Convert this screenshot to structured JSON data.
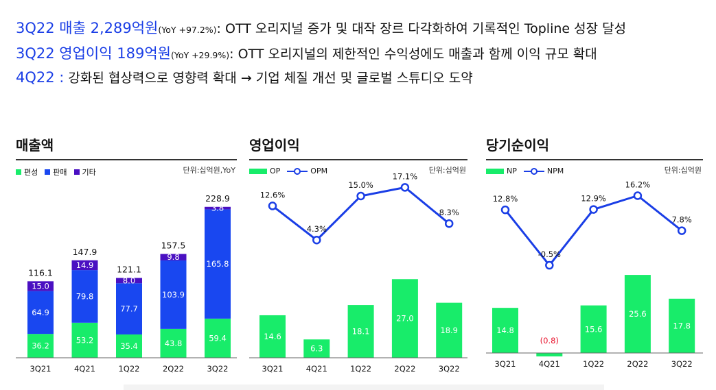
{
  "headlines": [
    {
      "big": "3Q22 매출 2,289억원",
      "yoy": "(YoY +97.2%)",
      "colon": ":",
      "text": " OTT 오리지널 증가 및 대작 장르 다각화하여 기록적인 Topline 성장 달성"
    },
    {
      "big": "3Q22 영업이익 189억원",
      "yoy": "(YoY +29.9%)",
      "colon": ":",
      "text": " OTT 오리지널의 제한적인 수익성에도 매출과 함께 이익 규모 확대"
    },
    {
      "big": "4Q22",
      "yoy": "",
      "colon": " :",
      "text": " 강화된 협상력으로 영향력 확대 → 기업 체질 개선 및 글로벌 스튜디오 도약"
    }
  ],
  "colors": {
    "green": "#18ec6a",
    "blue": "#1947f0",
    "purple": "#4a10c2",
    "line": "#1a3ee6",
    "neg": "#e8102a"
  },
  "chart_data": [
    {
      "type": "bar",
      "stacked": true,
      "title": "매출액",
      "unit": "단위:십억원,YoY",
      "categories": [
        "3Q21",
        "4Q21",
        "1Q22",
        "2Q22",
        "3Q22"
      ],
      "series": [
        {
          "name": "편성",
          "values": [
            36.2,
            53.2,
            35.4,
            43.8,
            59.4
          ]
        },
        {
          "name": "판매",
          "values": [
            64.9,
            79.8,
            77.7,
            103.9,
            165.8
          ]
        },
        {
          "name": "기타",
          "values": [
            15.0,
            14.9,
            8.0,
            9.8,
            3.8
          ]
        }
      ],
      "series_labels": [
        [
          "36.2",
          "53.2",
          "35.4",
          "43.8",
          "59.4"
        ],
        [
          "64.9",
          "79.8",
          "77.7",
          "103.9",
          "165.8"
        ],
        [
          "15.0",
          "14.9",
          "8.0",
          "9.8",
          "3.8"
        ]
      ],
      "totals": [
        116.1,
        147.9,
        121.1,
        157.5,
        228.9
      ],
      "total_labels": [
        "116.1",
        "147.9",
        "121.1",
        "157.5",
        "228.9"
      ],
      "ylim": [
        0,
        235
      ],
      "legend": "top-left",
      "grid": false
    },
    {
      "type": "bar+line",
      "title": "영업이익",
      "unit": "단위:십억원",
      "categories": [
        "3Q21",
        "4Q21",
        "1Q22",
        "2Q22",
        "3Q22"
      ],
      "bars": {
        "name": "OP",
        "values": [
          14.6,
          6.3,
          18.1,
          27.0,
          18.9
        ],
        "labels": [
          "14.6",
          "6.3",
          "18.1",
          "27.0",
          "18.9"
        ]
      },
      "line": {
        "name": "OPM",
        "values": [
          12.6,
          4.3,
          15.0,
          17.1,
          8.3
        ],
        "labels": [
          "12.6%",
          "4.3%",
          "15.0%",
          "17.1%",
          "8.3%"
        ]
      },
      "ylim": [
        0,
        27.6
      ],
      "legend": "top-left",
      "grid": false
    },
    {
      "type": "bar+line",
      "title": "당기순이익",
      "unit": "단위:십억원",
      "categories": [
        "3Q21",
        "4Q21",
        "1Q22",
        "2Q22",
        "3Q22"
      ],
      "bars": {
        "name": "NP",
        "values": [
          14.8,
          -0.8,
          15.6,
          25.6,
          17.8
        ],
        "labels": [
          "14.8",
          "(0.8)",
          "15.6",
          "25.6",
          "17.8"
        ]
      },
      "line": {
        "name": "NPM",
        "values": [
          12.8,
          -0.5,
          12.9,
          16.2,
          7.8
        ],
        "labels": [
          "12.8%",
          "-0.5%",
          "12.9%",
          "16.2%",
          "7.8%"
        ]
      },
      "ylim": [
        -0.8,
        26.0
      ],
      "legend": "top-left",
      "grid": false
    }
  ]
}
